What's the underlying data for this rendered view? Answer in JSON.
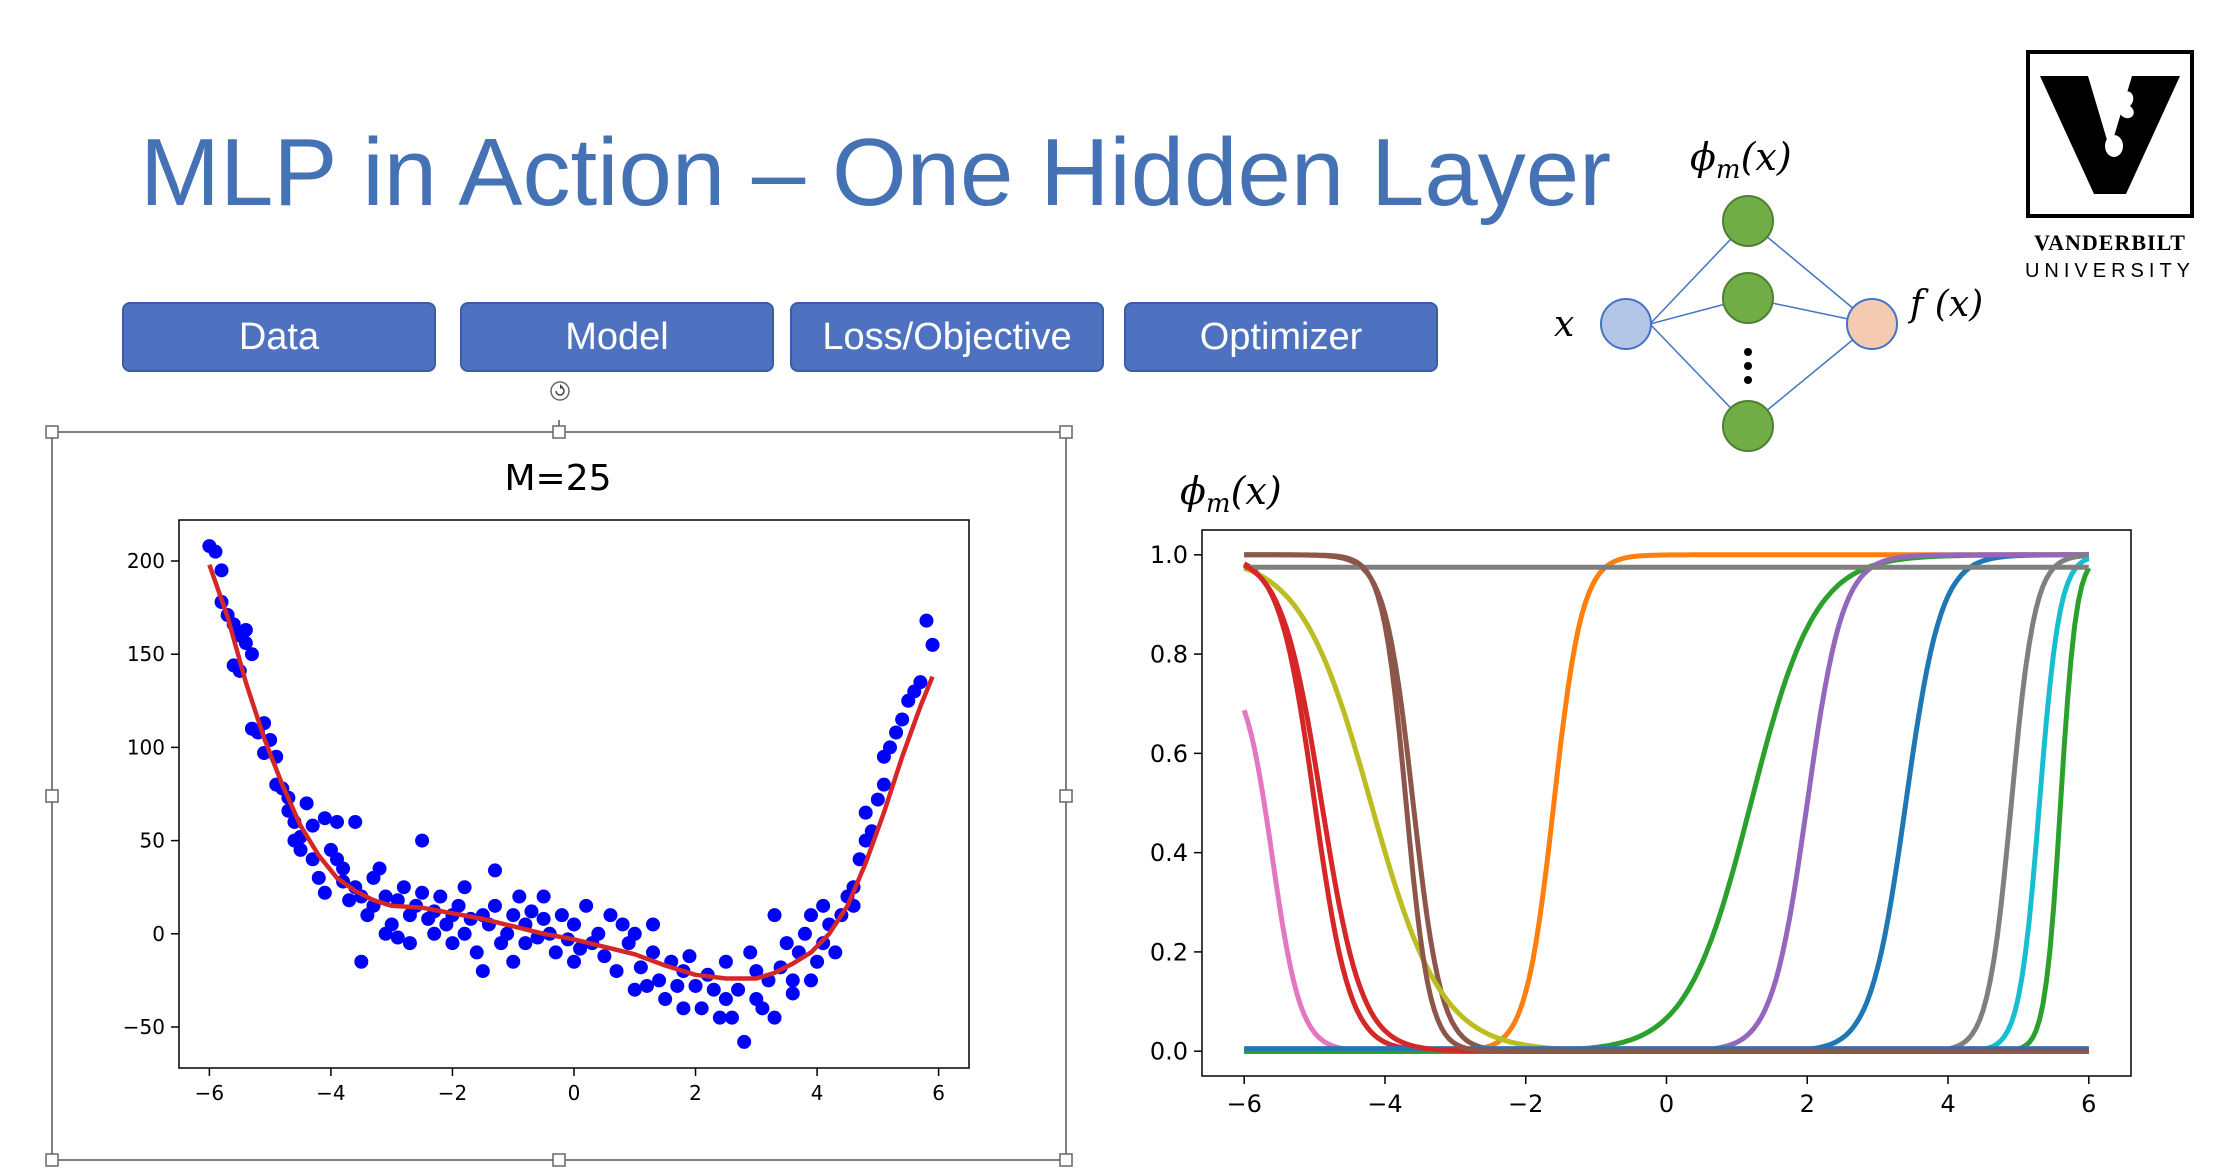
{
  "slide": {
    "title": "MLP in Action – One Hidden Layer",
    "buttons": [
      "Data",
      "Model",
      "Loss/Objective",
      "Optimizer"
    ],
    "logo": {
      "line1": "VANDERBILT",
      "line2": "UNIVERSITY"
    }
  },
  "diagram": {
    "hidden_label": "ϕ",
    "hidden_sub": "m",
    "hidden_arg": "(x)",
    "input_label": "x",
    "output_label": "f (x)"
  },
  "colors": {
    "title": "#4472b4",
    "button": "#4f72c0",
    "scatter": "#0000ff",
    "fit": "#d62728",
    "input_node": "#b4c6e7",
    "hidden_node": "#70ad47",
    "output_node": "#f4cbb0"
  },
  "chart_data": [
    {
      "type": "scatter",
      "title": "M=25",
      "xlim": [
        -6.5,
        6.5
      ],
      "ylim": [
        -72,
        222
      ],
      "xticks": [
        -6,
        -4,
        -2,
        0,
        2,
        4,
        6
      ],
      "yticks": [
        -50,
        0,
        50,
        100,
        150,
        200
      ],
      "tick_labels_x": [
        "−6",
        "−4",
        "−2",
        "0",
        "2",
        "4",
        "6"
      ],
      "tick_labels_y": [
        "−50",
        "0",
        "50",
        "100",
        "150",
        "200"
      ],
      "series": [
        {
          "kind": "scatter",
          "color": "#0000ff",
          "points": [
            [
              -6.0,
              208
            ],
            [
              -5.9,
              205
            ],
            [
              -5.8,
              195
            ],
            [
              -5.8,
              178
            ],
            [
              -5.7,
              171
            ],
            [
              -5.6,
              166
            ],
            [
              -5.6,
              144
            ],
            [
              -5.5,
              141
            ],
            [
              -5.5,
              160
            ],
            [
              -5.4,
              163
            ],
            [
              -5.4,
              156
            ],
            [
              -5.3,
              150
            ],
            [
              -5.3,
              110
            ],
            [
              -5.2,
              108
            ],
            [
              -5.1,
              113
            ],
            [
              -5.1,
              97
            ],
            [
              -5.0,
              104
            ],
            [
              -4.9,
              95
            ],
            [
              -4.9,
              80
            ],
            [
              -4.8,
              78
            ],
            [
              -4.7,
              73
            ],
            [
              -4.7,
              66
            ],
            [
              -4.6,
              60
            ],
            [
              -4.6,
              50
            ],
            [
              -4.5,
              52
            ],
            [
              -4.5,
              45
            ],
            [
              -4.4,
              70
            ],
            [
              -4.3,
              58
            ],
            [
              -4.3,
              40
            ],
            [
              -4.2,
              30
            ],
            [
              -4.1,
              22
            ],
            [
              -4.1,
              62
            ],
            [
              -4.0,
              45
            ],
            [
              -3.9,
              40
            ],
            [
              -3.9,
              60
            ],
            [
              -3.8,
              35
            ],
            [
              -3.8,
              28
            ],
            [
              -3.7,
              18
            ],
            [
              -3.6,
              60
            ],
            [
              -3.6,
              25
            ],
            [
              -3.5,
              -15
            ],
            [
              -3.5,
              20
            ],
            [
              -3.4,
              10
            ],
            [
              -3.3,
              15
            ],
            [
              -3.3,
              30
            ],
            [
              -3.2,
              35
            ],
            [
              -3.1,
              20
            ],
            [
              -3.1,
              0
            ],
            [
              -3.0,
              5
            ],
            [
              -2.9,
              18
            ],
            [
              -2.9,
              -2
            ],
            [
              -2.8,
              25
            ],
            [
              -2.7,
              10
            ],
            [
              -2.7,
              -5
            ],
            [
              -2.6,
              15
            ],
            [
              -2.5,
              22
            ],
            [
              -2.5,
              50
            ],
            [
              -2.4,
              8
            ],
            [
              -2.3,
              0
            ],
            [
              -2.3,
              12
            ],
            [
              -2.2,
              20
            ],
            [
              -2.1,
              5
            ],
            [
              -2.0,
              10
            ],
            [
              -2.0,
              -5
            ],
            [
              -1.9,
              15
            ],
            [
              -1.8,
              0
            ],
            [
              -1.8,
              25
            ],
            [
              -1.7,
              8
            ],
            [
              -1.6,
              -10
            ],
            [
              -1.5,
              10
            ],
            [
              -1.5,
              -20
            ],
            [
              -1.4,
              5
            ],
            [
              -1.3,
              15
            ],
            [
              -1.3,
              34
            ],
            [
              -1.2,
              -5
            ],
            [
              -1.1,
              0
            ],
            [
              -1.0,
              10
            ],
            [
              -1.0,
              -15
            ],
            [
              -0.9,
              20
            ],
            [
              -0.8,
              5
            ],
            [
              -0.8,
              -5
            ],
            [
              -0.7,
              12
            ],
            [
              -0.6,
              -2
            ],
            [
              -0.5,
              8
            ],
            [
              -0.5,
              20
            ],
            [
              -0.4,
              0
            ],
            [
              -0.3,
              -10
            ],
            [
              -0.2,
              10
            ],
            [
              -0.1,
              -3
            ],
            [
              0.0,
              -15
            ],
            [
              0.0,
              5
            ],
            [
              0.1,
              -8
            ],
            [
              0.2,
              15
            ],
            [
              0.3,
              -5
            ],
            [
              0.4,
              0
            ],
            [
              0.5,
              -12
            ],
            [
              0.6,
              10
            ],
            [
              0.7,
              -20
            ],
            [
              0.8,
              5
            ],
            [
              0.9,
              -5
            ],
            [
              1.0,
              -30
            ],
            [
              1.0,
              0
            ],
            [
              1.1,
              -18
            ],
            [
              1.2,
              -28
            ],
            [
              1.3,
              -10
            ],
            [
              1.3,
              5
            ],
            [
              1.4,
              -25
            ],
            [
              1.5,
              -35
            ],
            [
              1.6,
              -15
            ],
            [
              1.7,
              -28
            ],
            [
              1.8,
              -40
            ],
            [
              1.8,
              -20
            ],
            [
              1.9,
              -12
            ],
            [
              2.0,
              -28
            ],
            [
              2.1,
              -40
            ],
            [
              2.2,
              -22
            ],
            [
              2.3,
              -30
            ],
            [
              2.4,
              -45
            ],
            [
              2.5,
              -35
            ],
            [
              2.5,
              -15
            ],
            [
              2.6,
              -45
            ],
            [
              2.7,
              -30
            ],
            [
              2.8,
              -58
            ],
            [
              2.9,
              -10
            ],
            [
              3.0,
              -20
            ],
            [
              3.0,
              -35
            ],
            [
              3.1,
              -40
            ],
            [
              3.2,
              -25
            ],
            [
              3.3,
              -45
            ],
            [
              3.3,
              10
            ],
            [
              3.4,
              -18
            ],
            [
              3.5,
              -5
            ],
            [
              3.6,
              -25
            ],
            [
              3.6,
              -32
            ],
            [
              3.7,
              -10
            ],
            [
              3.8,
              0
            ],
            [
              3.9,
              -25
            ],
            [
              3.9,
              10
            ],
            [
              4.0,
              -15
            ],
            [
              4.1,
              -5
            ],
            [
              4.1,
              15
            ],
            [
              4.2,
              5
            ],
            [
              4.3,
              -10
            ],
            [
              4.4,
              10
            ],
            [
              4.5,
              20
            ],
            [
              4.6,
              15
            ],
            [
              4.6,
              25
            ],
            [
              4.7,
              40
            ],
            [
              4.8,
              50
            ],
            [
              4.8,
              65
            ],
            [
              4.9,
              55
            ],
            [
              5.0,
              72
            ],
            [
              5.1,
              80
            ],
            [
              5.1,
              95
            ],
            [
              5.2,
              100
            ],
            [
              5.3,
              108
            ],
            [
              5.4,
              115
            ],
            [
              5.5,
              125
            ],
            [
              5.6,
              130
            ],
            [
              5.7,
              135
            ],
            [
              5.8,
              168
            ],
            [
              5.9,
              155
            ]
          ]
        },
        {
          "kind": "line",
          "color": "#d62728",
          "points": [
            [
              -6.0,
              198
            ],
            [
              -5.7,
              170
            ],
            [
              -5.4,
              135
            ],
            [
              -5.1,
              105
            ],
            [
              -4.8,
              80
            ],
            [
              -4.5,
              58
            ],
            [
              -4.2,
              42
            ],
            [
              -3.9,
              30
            ],
            [
              -3.6,
              23
            ],
            [
              -3.3,
              18
            ],
            [
              -3.0,
              15
            ],
            [
              -2.5,
              14
            ],
            [
              -2.0,
              11
            ],
            [
              -1.5,
              8
            ],
            [
              -1.0,
              4
            ],
            [
              -0.5,
              0
            ],
            [
              0.0,
              -3
            ],
            [
              0.5,
              -7
            ],
            [
              1.0,
              -11
            ],
            [
              1.5,
              -17
            ],
            [
              2.0,
              -22
            ],
            [
              2.5,
              -24
            ],
            [
              3.0,
              -24
            ],
            [
              3.3,
              -21
            ],
            [
              3.6,
              -16
            ],
            [
              3.9,
              -10
            ],
            [
              4.2,
              0
            ],
            [
              4.5,
              15
            ],
            [
              4.8,
              38
            ],
            [
              5.1,
              65
            ],
            [
              5.4,
              95
            ],
            [
              5.7,
              122
            ],
            [
              5.9,
              138
            ]
          ]
        }
      ]
    },
    {
      "type": "line",
      "title": "ϕm(x)",
      "xlim": [
        -6.6,
        6.6
      ],
      "ylim": [
        -0.05,
        1.05
      ],
      "xticks": [
        -6,
        -4,
        -2,
        0,
        2,
        4,
        6
      ],
      "yticks": [
        0.0,
        0.2,
        0.4,
        0.6,
        0.8,
        1.0
      ],
      "tick_labels_x": [
        "−6",
        "−4",
        "−2",
        "0",
        "2",
        "4",
        "6"
      ],
      "tick_labels_y": [
        "0.0",
        "0.2",
        "0.4",
        "0.6",
        "0.8",
        "1.0"
      ],
      "series": [
        {
          "color": "#1f77b4",
          "shape": "rise",
          "center": 3.4,
          "slope": 4.0
        },
        {
          "color": "#ff7f0e",
          "shape": "rise",
          "center": -1.6,
          "slope": 5.0
        },
        {
          "color": "#2ca02c",
          "shape": "rise",
          "center": 1.2,
          "slope": 2.2
        },
        {
          "color": "#d62728",
          "shape": "fall",
          "center": -5.0,
          "slope": 4.0
        },
        {
          "color": "#9467bd",
          "shape": "rise",
          "center": 2.0,
          "slope": 4.0
        },
        {
          "color": "#8c564b",
          "shape": "fall",
          "center": -3.6,
          "slope": 5.0
        },
        {
          "color": "#e377c2",
          "shape": "fall",
          "center": -5.6,
          "slope": 5.0,
          "amp": 0.78
        },
        {
          "color": "#7f7f7f",
          "shape": "rise",
          "center": 4.9,
          "slope": 6.0
        },
        {
          "color": "#bcbd22",
          "shape": "fall",
          "center": -4.2,
          "slope": 2.0
        },
        {
          "color": "#17becf",
          "shape": "rise",
          "center": 5.3,
          "slope": 7.0
        },
        {
          "color": "#2ca02c",
          "shape": "rise",
          "center": 5.6,
          "slope": 9.0
        },
        {
          "color": "#7f7f7f",
          "shape": "const",
          "value": 0.975
        },
        {
          "color": "#9467bd",
          "shape": "const",
          "value": 0.005
        },
        {
          "color": "#1f77b4",
          "shape": "const",
          "value": 0.005
        },
        {
          "color": "#d62728",
          "shape": "fall",
          "center": -4.9,
          "slope": 3.5
        },
        {
          "color": "#8c564b",
          "shape": "fall",
          "center": -3.7,
          "slope": 6.0
        }
      ]
    }
  ]
}
